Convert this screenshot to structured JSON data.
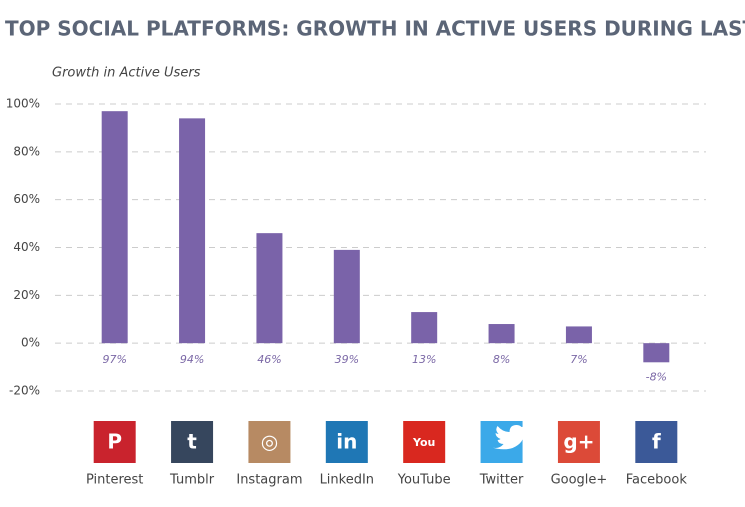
{
  "chart_data": {
    "type": "bar",
    "title": "TOP SOCIAL PLATFORMS: GROWTH IN ACTIVE USERS DURING LAST YEAR",
    "y_label": "Growth in Active Users",
    "categories": [
      "Pinterest",
      "Tumblr",
      "Instagram",
      "LinkedIn",
      "YouTube",
      "Twitter",
      "Google+",
      "Facebook"
    ],
    "values": [
      97,
      94,
      46,
      39,
      13,
      8,
      7,
      -8
    ],
    "value_labels": [
      "97%",
      "94%",
      "46%",
      "39%",
      "13%",
      "8%",
      "7%",
      "-8%"
    ],
    "color": "#7a63a9",
    "icon_colors": [
      "#c9232d",
      "#36465d",
      "#b78a63",
      "#1f77b5",
      "#d9281f",
      "#3ba9e9",
      "#dc4a38",
      "#3b5998"
    ],
    "icon_glyphs": [
      "P",
      "t",
      "◎",
      "in",
      "You",
      null,
      "g+",
      "f"
    ],
    "ylim": [
      -20,
      100
    ],
    "yticks": [
      {
        "value": -20,
        "label": "-20%"
      },
      {
        "value": 0,
        "label": "0%"
      },
      {
        "value": 20,
        "label": "20%"
      },
      {
        "value": 40,
        "label": "40%"
      },
      {
        "value": 60,
        "label": "60%"
      },
      {
        "value": 80,
        "label": "80%"
      },
      {
        "value": 100,
        "label": "100%"
      }
    ],
    "grid": true
  }
}
